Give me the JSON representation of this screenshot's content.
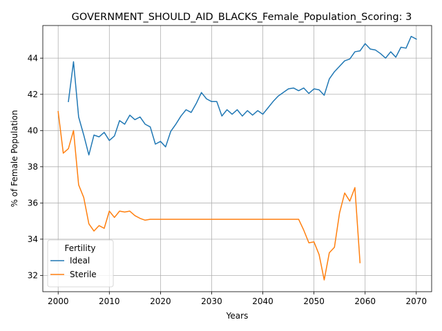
{
  "chart_data": {
    "type": "line",
    "title": "GOVERNMENT_SHOULD_AID_BLACKS_Female_Population_Scoring: 3",
    "xlabel": "Years",
    "ylabel": "% of Female Population",
    "xlim": [
      1997,
      2073
    ],
    "ylim": [
      31.1,
      45.8
    ],
    "xticks": [
      2000,
      2010,
      2020,
      2030,
      2040,
      2050,
      2060,
      2070
    ],
    "yticks": [
      32,
      34,
      36,
      38,
      40,
      42,
      44
    ],
    "grid": true,
    "legend": {
      "title": "Fertility",
      "placement": "lower-left"
    },
    "series": [
      {
        "name": "Ideal",
        "color": "#1f77b4",
        "points": [
          [
            2002,
            41.6
          ],
          [
            2003,
            43.8
          ],
          [
            2004,
            40.75
          ],
          [
            2005,
            39.75
          ],
          [
            2006,
            38.65
          ],
          [
            2007,
            39.75
          ],
          [
            2008,
            39.65
          ],
          [
            2009,
            39.9
          ],
          [
            2010,
            39.45
          ],
          [
            2011,
            39.7
          ],
          [
            2012,
            40.55
          ],
          [
            2013,
            40.35
          ],
          [
            2014,
            40.85
          ],
          [
            2015,
            40.6
          ],
          [
            2016,
            40.75
          ],
          [
            2017,
            40.35
          ],
          [
            2018,
            40.2
          ],
          [
            2019,
            39.25
          ],
          [
            2020,
            39.4
          ],
          [
            2021,
            39.1
          ],
          [
            2022,
            39.95
          ],
          [
            2023,
            40.35
          ],
          [
            2024,
            40.8
          ],
          [
            2025,
            41.15
          ],
          [
            2026,
            41.0
          ],
          [
            2027,
            41.5
          ],
          [
            2028,
            42.1
          ],
          [
            2029,
            41.75
          ],
          [
            2030,
            41.6
          ],
          [
            2031,
            41.6
          ],
          [
            2032,
            40.8
          ],
          [
            2033,
            41.15
          ],
          [
            2034,
            40.9
          ],
          [
            2035,
            41.15
          ],
          [
            2036,
            40.8
          ],
          [
            2037,
            41.1
          ],
          [
            2038,
            40.85
          ],
          [
            2039,
            41.1
          ],
          [
            2040,
            40.9
          ],
          [
            2041,
            41.25
          ],
          [
            2042,
            41.6
          ],
          [
            2043,
            41.9
          ],
          [
            2044,
            42.1
          ],
          [
            2045,
            42.3
          ],
          [
            2046,
            42.35
          ],
          [
            2047,
            42.2
          ],
          [
            2048,
            42.35
          ],
          [
            2049,
            42.05
          ],
          [
            2050,
            42.3
          ],
          [
            2051,
            42.25
          ],
          [
            2052,
            41.95
          ],
          [
            2053,
            42.85
          ],
          [
            2054,
            43.25
          ],
          [
            2055,
            43.55
          ],
          [
            2056,
            43.85
          ],
          [
            2057,
            43.95
          ],
          [
            2058,
            44.35
          ],
          [
            2059,
            44.4
          ],
          [
            2060,
            44.8
          ],
          [
            2061,
            44.5
          ],
          [
            2062,
            44.45
          ],
          [
            2063,
            44.25
          ],
          [
            2064,
            44.0
          ],
          [
            2065,
            44.35
          ],
          [
            2066,
            44.05
          ],
          [
            2067,
            44.6
          ],
          [
            2068,
            44.55
          ],
          [
            2069,
            45.2
          ],
          [
            2070,
            45.05
          ]
        ]
      },
      {
        "name": "Sterile",
        "color": "#ff7f0e",
        "points": [
          [
            2000,
            41.05
          ],
          [
            2001,
            38.75
          ],
          [
            2002,
            39.0
          ],
          [
            2003,
            40.0
          ],
          [
            2004,
            37.0
          ],
          [
            2005,
            36.3
          ],
          [
            2006,
            34.85
          ],
          [
            2007,
            34.45
          ],
          [
            2008,
            34.75
          ],
          [
            2009,
            34.6
          ],
          [
            2010,
            35.55
          ],
          [
            2011,
            35.2
          ],
          [
            2012,
            35.55
          ],
          [
            2013,
            35.5
          ],
          [
            2014,
            35.55
          ],
          [
            2015,
            35.3
          ],
          [
            2016,
            35.15
          ],
          [
            2017,
            35.05
          ],
          [
            2018,
            35.1
          ],
          [
            2019,
            35.1
          ],
          [
            2020,
            35.1
          ],
          [
            2021,
            35.1
          ],
          [
            2022,
            35.1
          ],
          [
            2023,
            35.1
          ],
          [
            2024,
            35.1
          ],
          [
            2025,
            35.1
          ],
          [
            2026,
            35.1
          ],
          [
            2027,
            35.1
          ],
          [
            2028,
            35.1
          ],
          [
            2029,
            35.1
          ],
          [
            2030,
            35.1
          ],
          [
            2031,
            35.1
          ],
          [
            2032,
            35.1
          ],
          [
            2033,
            35.1
          ],
          [
            2034,
            35.1
          ],
          [
            2035,
            35.1
          ],
          [
            2036,
            35.1
          ],
          [
            2037,
            35.1
          ],
          [
            2038,
            35.1
          ],
          [
            2039,
            35.1
          ],
          [
            2040,
            35.1
          ],
          [
            2041,
            35.1
          ],
          [
            2042,
            35.1
          ],
          [
            2043,
            35.1
          ],
          [
            2044,
            35.1
          ],
          [
            2045,
            35.1
          ],
          [
            2046,
            35.1
          ],
          [
            2047,
            35.1
          ],
          [
            2048,
            34.5
          ],
          [
            2049,
            33.8
          ],
          [
            2050,
            33.85
          ],
          [
            2051,
            33.15
          ],
          [
            2052,
            31.75
          ],
          [
            2053,
            33.25
          ],
          [
            2054,
            33.55
          ],
          [
            2055,
            35.45
          ],
          [
            2056,
            36.55
          ],
          [
            2057,
            36.1
          ],
          [
            2058,
            36.85
          ],
          [
            2059,
            32.7
          ]
        ]
      }
    ]
  }
}
